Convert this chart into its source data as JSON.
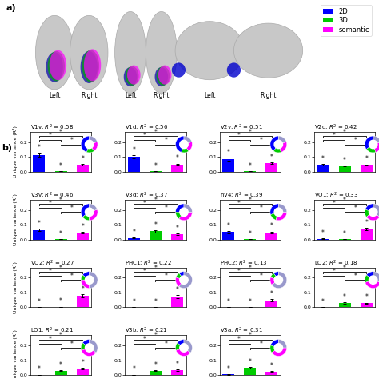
{
  "panels": [
    {
      "label": "V1v",
      "R2": 0.58,
      "bars": [
        0.115,
        0.003,
        0.048
      ],
      "errors": [
        0.012,
        0.001,
        0.005
      ],
      "pie": [
        0.45,
        0.15,
        0.2,
        0.2
      ]
    },
    {
      "label": "V1d",
      "R2": 0.56,
      "bars": [
        0.1,
        0.003,
        0.05
      ],
      "errors": [
        0.01,
        0.001,
        0.005
      ],
      "pie": [
        0.45,
        0.15,
        0.2,
        0.2
      ]
    },
    {
      "label": "V2v",
      "R2": 0.51,
      "bars": [
        0.085,
        0.003,
        0.058
      ],
      "errors": [
        0.01,
        0.001,
        0.006
      ],
      "pie": [
        0.4,
        0.15,
        0.25,
        0.2
      ]
    },
    {
      "label": "V2d",
      "R2": 0.42,
      "bars": [
        0.048,
        0.038,
        0.045
      ],
      "errors": [
        0.005,
        0.004,
        0.005
      ],
      "pie": [
        0.35,
        0.2,
        0.25,
        0.2
      ]
    },
    {
      "label": "V3v",
      "R2": 0.46,
      "bars": [
        0.065,
        0.003,
        0.045
      ],
      "errors": [
        0.01,
        0.001,
        0.006
      ],
      "pie": [
        0.35,
        0.15,
        0.3,
        0.2
      ]
    },
    {
      "label": "V3d",
      "R2": 0.37,
      "bars": [
        0.01,
        0.055,
        0.035
      ],
      "errors": [
        0.002,
        0.008,
        0.005
      ],
      "pie": [
        0.25,
        0.15,
        0.35,
        0.25
      ]
    },
    {
      "label": "hV4",
      "R2": 0.39,
      "bars": [
        0.05,
        0.003,
        0.048
      ],
      "errors": [
        0.008,
        0.001,
        0.006
      ],
      "pie": [
        0.3,
        0.15,
        0.3,
        0.25
      ]
    },
    {
      "label": "VO1",
      "R2": 0.33,
      "bars": [
        0.005,
        0.003,
        0.07
      ],
      "errors": [
        0.001,
        0.001,
        0.008
      ],
      "pie": [
        0.2,
        0.15,
        0.3,
        0.35
      ]
    },
    {
      "label": "VO2",
      "R2": 0.27,
      "bars": [
        0.002,
        0.003,
        0.078
      ],
      "errors": [
        0.001,
        0.001,
        0.01
      ],
      "pie": [
        0.15,
        0.1,
        0.25,
        0.5
      ]
    },
    {
      "label": "PHC1",
      "R2": 0.22,
      "bars": [
        0.002,
        0.002,
        0.072
      ],
      "errors": [
        0.001,
        0.001,
        0.01
      ],
      "pie": [
        0.1,
        0.1,
        0.2,
        0.6
      ]
    },
    {
      "label": "PHC2",
      "R2": 0.13,
      "bars": [
        0.002,
        0.002,
        0.048
      ],
      "errors": [
        0.001,
        0.001,
        0.007
      ],
      "pie": [
        0.1,
        0.1,
        0.15,
        0.65
      ]
    },
    {
      "label": "LO2",
      "R2": 0.18,
      "bars": [
        0.002,
        0.03,
        0.028
      ],
      "errors": [
        0.001,
        0.004,
        0.004
      ],
      "pie": [
        0.15,
        0.15,
        0.4,
        0.3
      ]
    },
    {
      "label": "LO1",
      "R2": 0.21,
      "bars": [
        0.002,
        0.03,
        0.045
      ],
      "errors": [
        0.001,
        0.004,
        0.006
      ],
      "pie": [
        0.15,
        0.15,
        0.35,
        0.35
      ]
    },
    {
      "label": "V3b",
      "R2": 0.21,
      "bars": [
        0.002,
        0.03,
        0.035
      ],
      "errors": [
        0.001,
        0.004,
        0.005
      ],
      "pie": [
        0.15,
        0.15,
        0.35,
        0.35
      ]
    },
    {
      "label": "V3a",
      "R2": 0.31,
      "bars": [
        0.005,
        0.05,
        0.025
      ],
      "errors": [
        0.001,
        0.007,
        0.004
      ],
      "pie": [
        0.2,
        0.15,
        0.4,
        0.25
      ]
    }
  ],
  "bar_colors": [
    "#0000FF",
    "#00CC00",
    "#FF00FF"
  ],
  "pie_colors": [
    "#0000FF",
    "#00CC00",
    "#FF00FF",
    "#9999CC"
  ],
  "bar_labels": [
    "2D",
    "3D",
    "semantic"
  ],
  "ylabel": "Unique variance (R²)",
  "ylim": [
    0.0,
    0.27
  ],
  "yticks": [
    0.0,
    0.1,
    0.2
  ],
  "background": "#ffffff"
}
